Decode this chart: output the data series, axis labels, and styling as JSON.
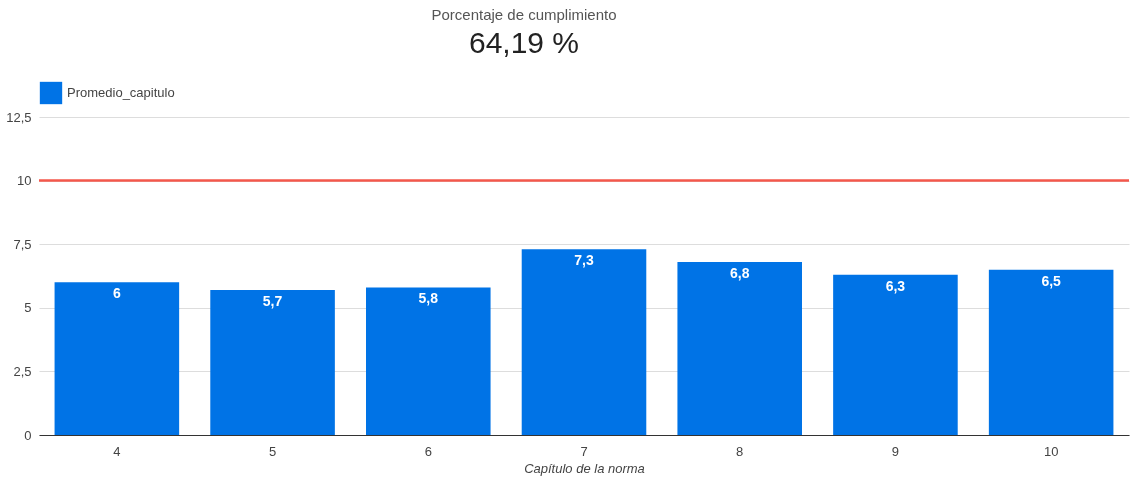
{
  "chart_data": {
    "type": "bar",
    "title": "Porcentaje de cumplimiento",
    "subtitle": "64,19 %",
    "xlabel": "Capítulo de la norma",
    "categories": [
      "4",
      "5",
      "6",
      "7",
      "8",
      "9",
      "10"
    ],
    "series": [
      {
        "name": "Promedio_capitulo",
        "color": "#0073e6",
        "values": [
          6,
          5.7,
          5.8,
          7.3,
          6.8,
          6.3,
          6.5
        ],
        "value_labels": [
          "6",
          "5,7",
          "5,8",
          "7,3",
          "6,8",
          "6,3",
          "6,5"
        ]
      }
    ],
    "ylim": [
      0,
      12.5
    ],
    "yticks": [
      0,
      {
        "value": 2.5,
        "label": "2,5"
      },
      5,
      {
        "value": 7.5,
        "label": "7,5"
      },
      10,
      {
        "value": 12.5,
        "label": "12,5"
      }
    ],
    "ref_lines": [
      {
        "axis": "y",
        "value": 10,
        "color": "#f4574b"
      }
    ],
    "grid": "y",
    "legend": "top left"
  }
}
